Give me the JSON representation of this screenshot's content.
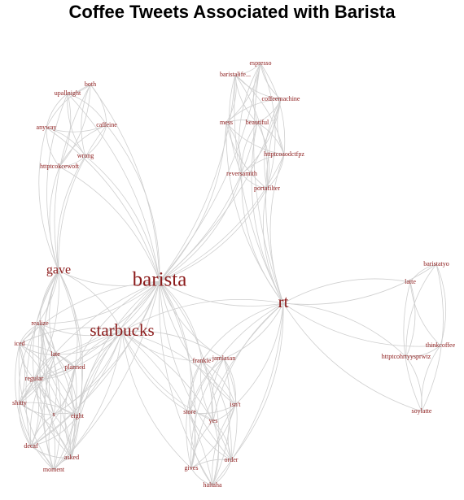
{
  "title": "Coffee Tweets Associated with Barista",
  "colors": {
    "label": "#8b1a1a",
    "faded_label": "#c0c0c0",
    "edge": "#cfcfcf"
  },
  "nodes": [
    {
      "id": "barista",
      "label": "barista",
      "weight": 5
    },
    {
      "id": "starbucks",
      "label": "starbucks",
      "weight": 4
    },
    {
      "id": "rt",
      "label": "rt",
      "weight": 4
    },
    {
      "id": "gave",
      "label": "gave",
      "weight": 3
    },
    {
      "id": "espresso",
      "label": "espresso",
      "weight": 1
    },
    {
      "id": "baristalife",
      "label": "baristalife...",
      "weight": 1
    },
    {
      "id": "coffeemachine",
      "label": "coffeemachine",
      "weight": 1
    },
    {
      "id": "mess",
      "label": "mess",
      "weight": 1
    },
    {
      "id": "beautiful",
      "label": "beautiful",
      "weight": 1
    },
    {
      "id": "httptcoaodctfpz",
      "label": "httptcoaodctfpz",
      "weight": 1
    },
    {
      "id": "reverseamith",
      "label": "reversamith",
      "weight": 1
    },
    {
      "id": "portafilter",
      "label": "portafilter",
      "weight": 1
    },
    {
      "id": "both",
      "label": "both",
      "weight": 1
    },
    {
      "id": "upallnight",
      "label": "upallnight",
      "weight": 1
    },
    {
      "id": "anyway",
      "label": "anyway",
      "weight": 1
    },
    {
      "id": "caffeine",
      "label": "caffeine",
      "weight": 1
    },
    {
      "id": "wrong",
      "label": "wrong",
      "weight": 1
    },
    {
      "id": "httptcokcewoft",
      "label": "httptcokcewoft",
      "weight": 1
    },
    {
      "id": "baristatyo",
      "label": "baristatyo",
      "weight": 1,
      "faded": true
    },
    {
      "id": "latte2",
      "label": "latte",
      "weight": 1
    },
    {
      "id": "thinkcoffee",
      "label": "thinkcoffee",
      "weight": 1
    },
    {
      "id": "httptcohrtyysprwtz",
      "label": "httptcohrtyysprwtz",
      "weight": 1
    },
    {
      "id": "soylatte",
      "label": "soylatte",
      "weight": 1
    },
    {
      "id": "realize",
      "label": "realize",
      "weight": 1
    },
    {
      "id": "iced",
      "label": "iced",
      "weight": 1
    },
    {
      "id": "late",
      "label": "late",
      "weight": 1
    },
    {
      "id": "planned",
      "label": "planned",
      "weight": 1
    },
    {
      "id": "regular",
      "label": "regular",
      "weight": 1
    },
    {
      "id": "shitty",
      "label": "shitty",
      "weight": 1
    },
    {
      "id": "s",
      "label": "s",
      "weight": 1
    },
    {
      "id": "eight",
      "label": "eight",
      "weight": 1
    },
    {
      "id": "decaf",
      "label": "decaf",
      "weight": 1
    },
    {
      "id": "asked",
      "label": "asked",
      "weight": 1
    },
    {
      "id": "moment",
      "label": "moment",
      "weight": 1
    },
    {
      "id": "frankie",
      "label": "frankie",
      "weight": 1
    },
    {
      "id": "jamlasan",
      "label": "jamlasan",
      "weight": 1
    },
    {
      "id": "store",
      "label": "store",
      "weight": 1
    },
    {
      "id": "isnt",
      "label": "isn't",
      "weight": 1
    },
    {
      "id": "yes",
      "label": "yes",
      "weight": 1
    },
    {
      "id": "order",
      "label": "order",
      "weight": 1
    },
    {
      "id": "gives",
      "label": "gives",
      "weight": 1
    },
    {
      "id": "haltaha",
      "label": "haltaha",
      "weight": 1
    }
  ]
}
